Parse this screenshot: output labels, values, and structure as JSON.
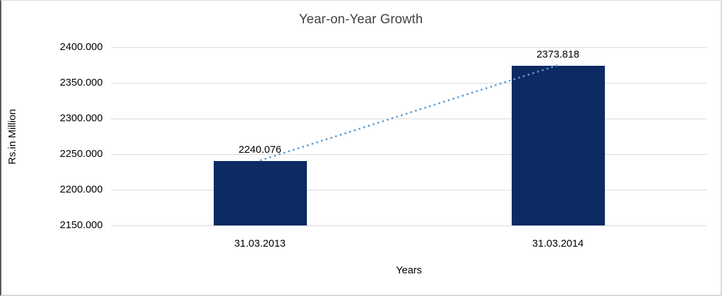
{
  "chart": {
    "title": "Year-on-Year Growth",
    "xlabel": "Years",
    "ylabel": "Rs.in Million"
  },
  "chart_data": {
    "type": "bar",
    "title": "Year-on-Year Growth",
    "xlabel": "Years",
    "ylabel": "Rs.in Million",
    "categories": [
      "31.03.2013",
      "31.03.2014"
    ],
    "values": [
      2240.076,
      2373.818
    ],
    "data_labels": [
      "2240.076",
      "2373.818"
    ],
    "ylim": [
      2150,
      2400
    ],
    "ytick_values": [
      2400,
      2350,
      2300,
      2250,
      2200,
      2150
    ],
    "ytick_labels": [
      "2400.000",
      "2350.000",
      "2300.000",
      "2250.000",
      "2200.000",
      "2150.000"
    ],
    "grid": true,
    "legend": "none",
    "trendline": {
      "type": "linear",
      "style": "dotted",
      "connects": [
        "31.03.2013",
        "31.03.2014"
      ]
    },
    "colors": {
      "bar": "#0e2a63",
      "trendline": "#5b9bd5",
      "gridline": "#d9d9d9",
      "title_text": "#3f3f3f",
      "axis_text": "#000000",
      "frame_border": "#d9d9d9",
      "left_edge": "#595959"
    }
  }
}
